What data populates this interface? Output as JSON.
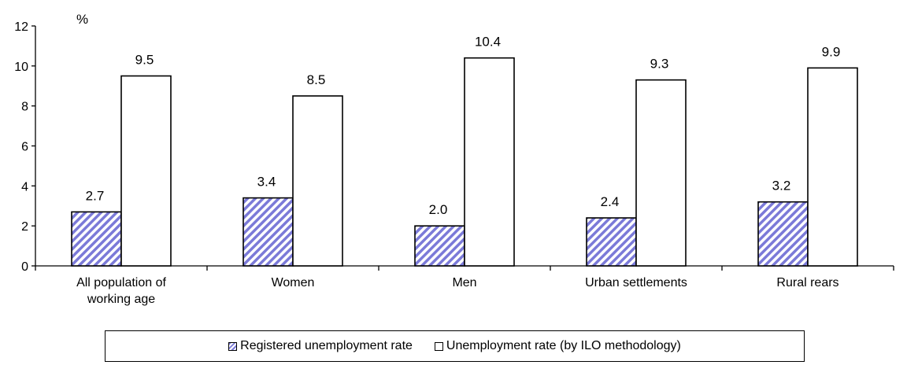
{
  "chart_data": {
    "type": "bar",
    "ylabel": "%",
    "ylim": [
      0,
      12
    ],
    "yticks": [
      "0",
      "2",
      "4",
      "6",
      "8",
      "10",
      "12"
    ],
    "categories": [
      [
        "All population of",
        "working age"
      ],
      [
        "Women"
      ],
      [
        "Men"
      ],
      [
        "Urban settlements"
      ],
      [
        "Rural rears"
      ]
    ],
    "series": [
      {
        "name": "Registered unemployment rate",
        "values": [
          2.7,
          3.4,
          2.0,
          2.4,
          3.2
        ],
        "labels": [
          "2.7",
          "3.4",
          "2.0",
          "2.4",
          "3.2"
        ],
        "fill": "hatch",
        "color": "#7b7ad8"
      },
      {
        "name": "Unemployment rate (by ILO methodology)",
        "values": [
          9.5,
          8.5,
          10.4,
          9.3,
          9.9
        ],
        "labels": [
          "9.5",
          "8.5",
          "10.4",
          "9.3",
          "9.9"
        ],
        "fill": "white",
        "color": "#ffffff"
      }
    ],
    "legend_position": "bottom",
    "grid": false
  },
  "legend": {
    "item1": "Registered unemployment rate",
    "item2": "Unemployment rate (by ILO methodology)"
  }
}
